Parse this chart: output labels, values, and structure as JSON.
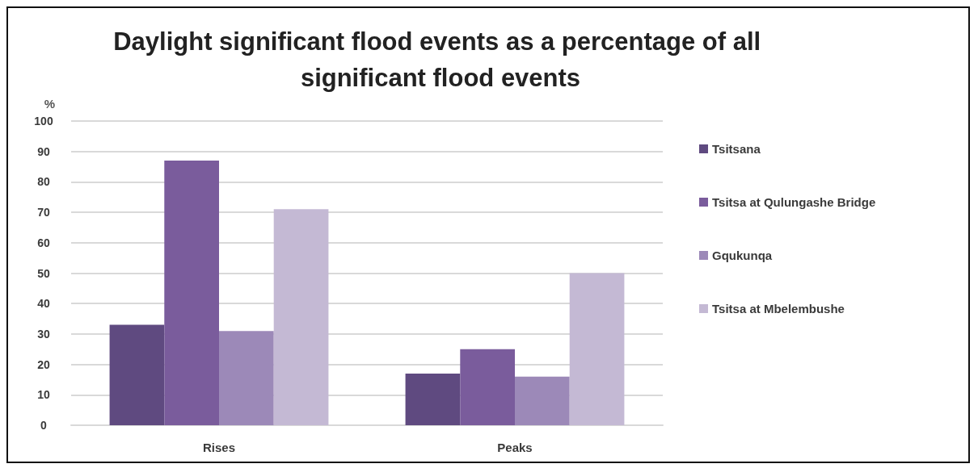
{
  "chart_data": {
    "type": "bar",
    "title": "Daylight significant flood events as a percentage of all significant flood events",
    "ylabel": "%",
    "categories": [
      "Rises",
      "Peaks"
    ],
    "series": [
      {
        "name": "Tsitsana",
        "color": "#5f4a80",
        "values": [
          33,
          17
        ]
      },
      {
        "name": "Tsitsa at Qulungashe Bridge",
        "color": "#7a5c9c",
        "values": [
          87,
          25
        ]
      },
      {
        "name": "Gqukunqa",
        "color": "#9c89b8",
        "values": [
          31,
          16
        ]
      },
      {
        "name": "Tsitsa at Mbelembushe",
        "color": "#c4b9d4",
        "values": [
          71,
          50
        ]
      }
    ],
    "ylim": [
      0,
      100
    ],
    "yticks": [
      0,
      10,
      20,
      30,
      40,
      50,
      60,
      70,
      80,
      90,
      100
    ],
    "grid": "y",
    "legend": "right"
  }
}
